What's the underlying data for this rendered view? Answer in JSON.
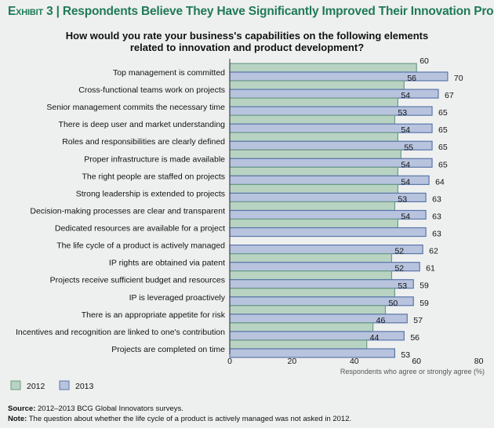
{
  "title_prefix": "Exhibit 3",
  "title": "Respondents Believe They Have Significantly Improved Their Innovation Process",
  "subtitle_line1": "How would you rate your business's capabilities on the following elements",
  "subtitle_line2": "related to innovation and product development?",
  "source_label": "Source:",
  "source": "2012–2013 BCG Global Innovators surveys.",
  "note_label": "Note:",
  "note": "The question about whether the life cycle of a product is actively managed was not asked in 2012.",
  "chart_data": {
    "type": "bar",
    "orientation": "horizontal",
    "xlabel": "Respondents who agree or strongly agree (%)",
    "xlim": [
      0,
      80
    ],
    "xticks": [
      0,
      20,
      40,
      60,
      80
    ],
    "grid": false,
    "legend_position": "bottom-left",
    "categories": [
      "Top management is committed",
      "Cross-functional teams work on projects",
      "Senior management commits the necessary time",
      "There is deep user and market understanding",
      "Roles and responsibilities are clearly defined",
      "Proper infrastructure is made available",
      "The right people are staffed on projects",
      "Strong leadership is extended to projects",
      "Decision-making processes are clear and transparent",
      "Dedicated resources are available for a project",
      "The life cycle of a product is actively managed",
      "IP rights are obtained via patent",
      "Projects receive sufficient budget and resources",
      "IP is leveraged proactively",
      "There is an appropriate appetite for risk",
      "Incentives and recognition are linked to one's contribution",
      "Projects are completed on time"
    ],
    "series": [
      {
        "name": "2012",
        "color": "#b9d3c3",
        "border": "#6c9c86",
        "values": [
          60,
          56,
          54,
          53,
          54,
          55,
          54,
          54,
          53,
          54,
          null,
          52,
          52,
          53,
          50,
          46,
          44
        ]
      },
      {
        "name": "2013",
        "color": "#b8c3de",
        "border": "#5a76ab",
        "values": [
          70,
          67,
          65,
          65,
          65,
          65,
          64,
          63,
          63,
          63,
          62,
          61,
          59,
          59,
          57,
          56,
          53
        ]
      }
    ]
  }
}
